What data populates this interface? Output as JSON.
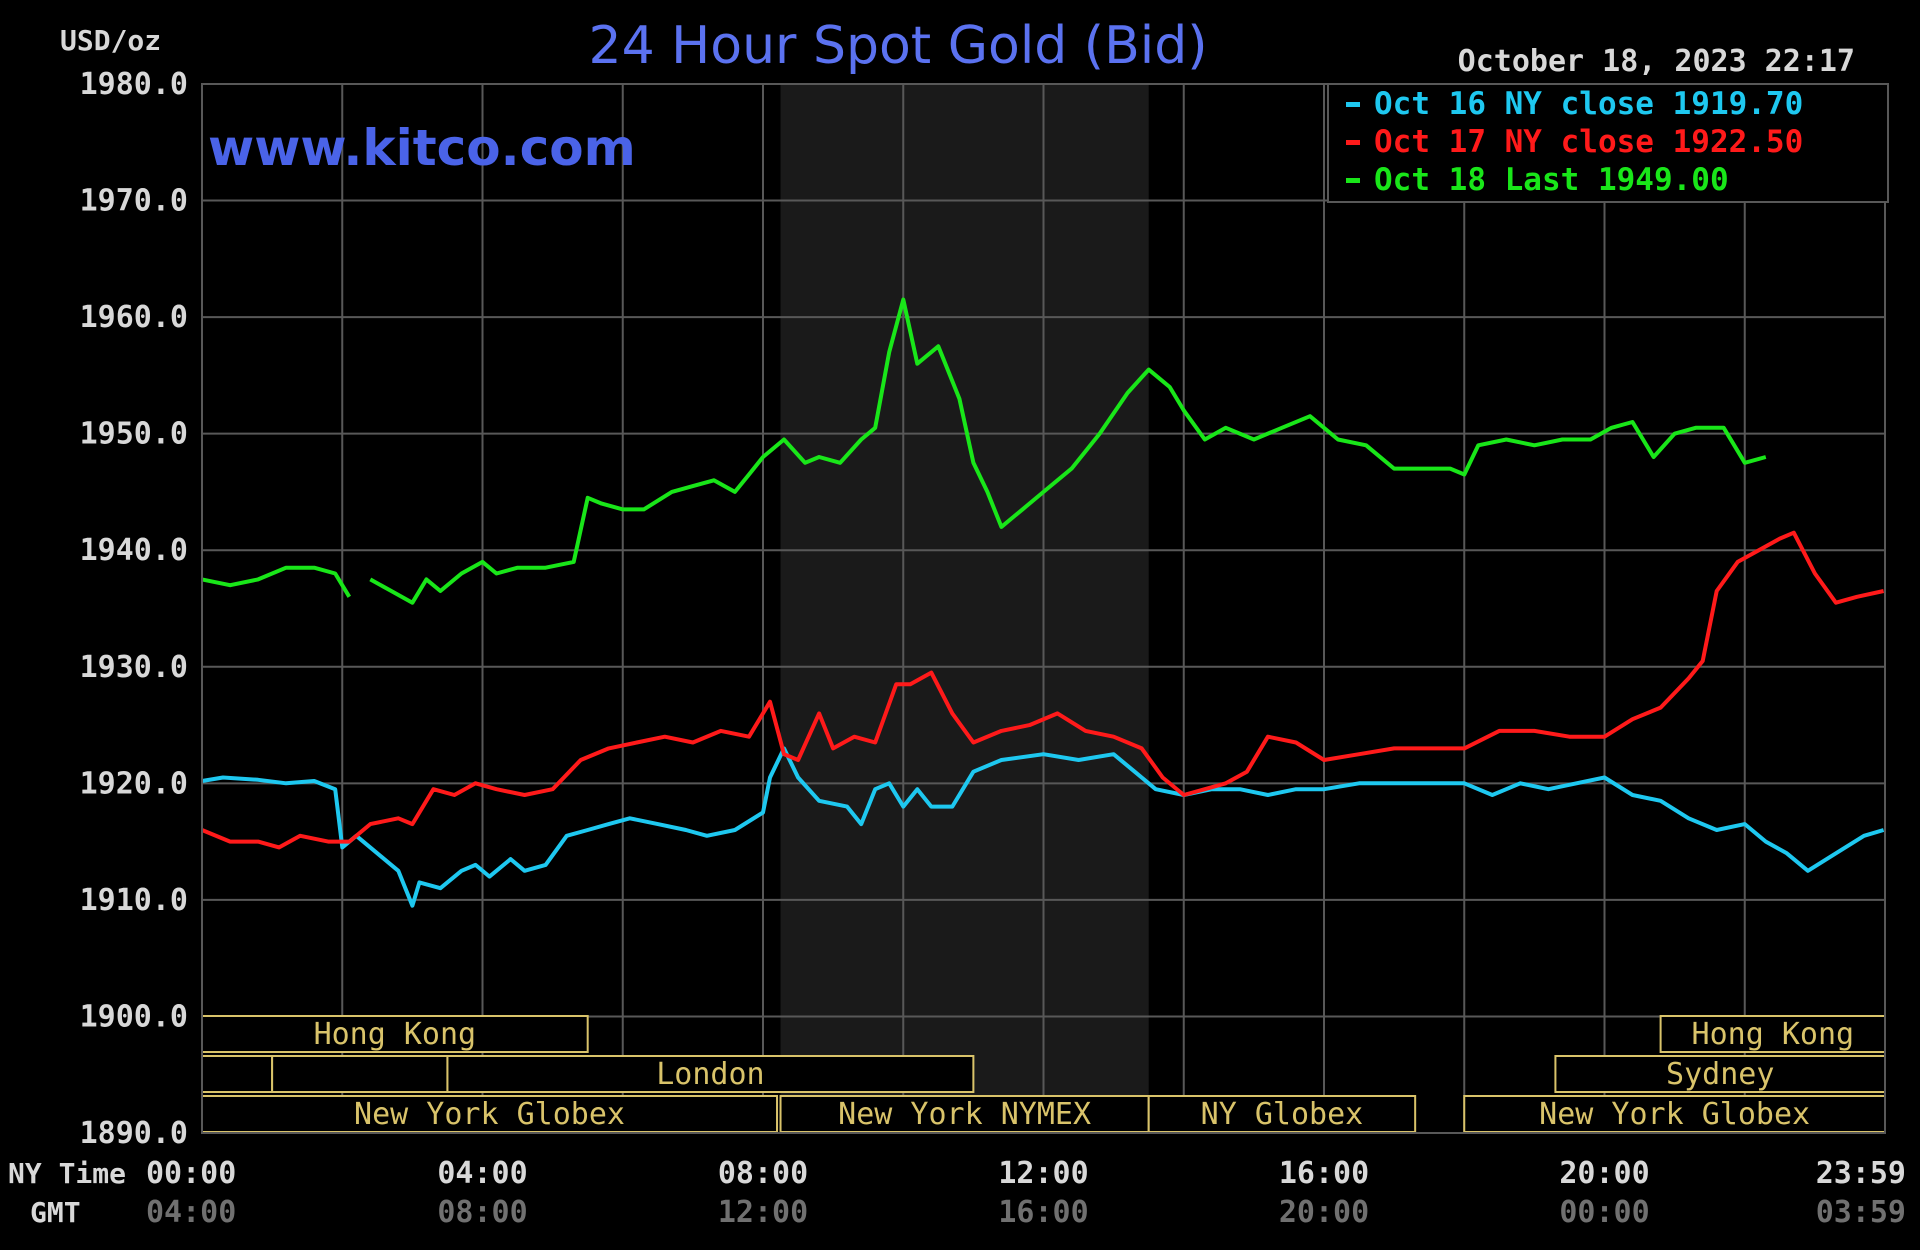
{
  "chart_data": {
    "type": "line",
    "title": "24 Hour Spot Gold (Bid)",
    "watermark": "www.kitco.com",
    "timestamp": "October 18, 2023 22:17",
    "ylabel": "USD/oz",
    "ylim": [
      1890,
      1980
    ],
    "y_ticks": [
      "1980.0",
      "1970.0",
      "1960.0",
      "1950.0",
      "1940.0",
      "1930.0",
      "1920.0",
      "1910.0",
      "1900.0",
      "1890.0"
    ],
    "x_row_labels": {
      "ny": "NY Time",
      "gmt": "GMT"
    },
    "x_ticks_ny": [
      "00:00",
      "04:00",
      "08:00",
      "12:00",
      "16:00",
      "20:00",
      "23:59"
    ],
    "x_ticks_gmt": [
      "04:00",
      "08:00",
      "12:00",
      "16:00",
      "20:00",
      "00:00",
      "03:59"
    ],
    "x_tick_hours": [
      0,
      4,
      8,
      12,
      16,
      20,
      23.983
    ],
    "grid": true,
    "shaded_period_hours": [
      8.25,
      13.5
    ],
    "legend_position": "top-right",
    "colors": {
      "background": "#000000",
      "grid": "#585858",
      "title": "#5b72f0",
      "axis_text": "#d8d8d8",
      "gmt_text": "#707070",
      "session": "#d9c36a",
      "shade": "#1a1a1a"
    },
    "sessions": [
      {
        "label": "Hong Kong",
        "row": 0,
        "start": 0,
        "end": 5.5
      },
      {
        "label": "",
        "row": 1,
        "start": 0,
        "end": 1
      },
      {
        "label": "",
        "row": 1,
        "start": 1,
        "end": 3.5
      },
      {
        "label": "London",
        "row": 1,
        "start": 3.5,
        "end": 11
      },
      {
        "label": "New York Globex",
        "row": 2,
        "start": 0,
        "end": 8.2
      },
      {
        "label": "New York NYMEX",
        "row": 2,
        "start": 8.25,
        "end": 13.5
      },
      {
        "label": "NY Globex",
        "row": 2,
        "start": 13.5,
        "end": 17.3
      },
      {
        "label": "Hong Kong",
        "row": 0,
        "start": 20.8,
        "end": 24
      },
      {
        "label": "Sydney",
        "row": 1,
        "start": 19.3,
        "end": 24
      },
      {
        "label": "New York Globex",
        "row": 2,
        "start": 18,
        "end": 24
      }
    ],
    "series": [
      {
        "name": "Oct 16 NY close 1919.70",
        "color": "#1ec8f0",
        "x": [
          0,
          0.3,
          0.8,
          1.2,
          1.6,
          1.9,
          2.0,
          2.2,
          2.5,
          2.8,
          3.0,
          3.1,
          3.4,
          3.7,
          3.9,
          4.1,
          4.4,
          4.6,
          4.9,
          5.2,
          5.5,
          5.8,
          6.1,
          6.5,
          6.9,
          7.2,
          7.6,
          8.0,
          8.1,
          8.3,
          8.5,
          8.8,
          9.2,
          9.4,
          9.6,
          9.8,
          10.0,
          10.2,
          10.4,
          10.7,
          11.0,
          11.4,
          12.0,
          12.5,
          13.0,
          13.3,
          13.6,
          14.0,
          14.4,
          14.8,
          15.2,
          15.6,
          16.0,
          16.5,
          17.0,
          17.5,
          18.0,
          18.4,
          18.8,
          19.2,
          19.6,
          20.0,
          20.4,
          20.8,
          21.2,
          21.6,
          22.0,
          22.3,
          22.6,
          22.9,
          23.3,
          23.7,
          23.98
        ],
        "values": [
          1920.2,
          1920.5,
          1920.3,
          1920.0,
          1920.2,
          1919.5,
          1914.5,
          1915.5,
          1914.0,
          1912.5,
          1909.5,
          1911.5,
          1911.0,
          1912.5,
          1913.0,
          1912.0,
          1913.5,
          1912.5,
          1913.0,
          1915.5,
          1916.0,
          1916.5,
          1917.0,
          1916.5,
          1916.0,
          1915.5,
          1916.0,
          1917.5,
          1920.5,
          1923.0,
          1920.5,
          1918.5,
          1918.0,
          1916.5,
          1919.5,
          1920.0,
          1918.0,
          1919.5,
          1918.0,
          1918.0,
          1921.0,
          1922.0,
          1922.5,
          1922.0,
          1922.5,
          1921.0,
          1919.5,
          1919.0,
          1919.5,
          1919.5,
          1919.0,
          1919.5,
          1919.5,
          1920.0,
          1920.0,
          1920.0,
          1920.0,
          1919.0,
          1920.0,
          1919.5,
          1920.0,
          1920.5,
          1919.0,
          1918.5,
          1917.0,
          1916.0,
          1916.5,
          1915.0,
          1914.0,
          1912.5,
          1914.0,
          1915.5,
          1916.0
        ]
      },
      {
        "name": "Oct 17 NY close 1922.50",
        "color": "#ff1a1a",
        "x": [
          0,
          0.4,
          0.8,
          1.1,
          1.4,
          1.8,
          2.1,
          2.4,
          2.8,
          3.0,
          3.3,
          3.6,
          3.9,
          4.2,
          4.6,
          5.0,
          5.4,
          5.8,
          6.2,
          6.6,
          7.0,
          7.4,
          7.8,
          8.1,
          8.3,
          8.5,
          8.8,
          9.0,
          9.3,
          9.6,
          9.9,
          10.1,
          10.4,
          10.7,
          11.0,
          11.4,
          11.8,
          12.2,
          12.6,
          13.0,
          13.4,
          13.7,
          14.0,
          14.3,
          14.6,
          14.9,
          15.2,
          15.6,
          16.0,
          16.5,
          17.0,
          17.5,
          18.0,
          18.5,
          19.0,
          19.5,
          20.0,
          20.4,
          20.8,
          21.2,
          21.4,
          21.6,
          21.9,
          22.2,
          22.5,
          22.7,
          23.0,
          23.3,
          23.6,
          23.98
        ],
        "values": [
          1916.0,
          1915.0,
          1915.0,
          1914.5,
          1915.5,
          1915.0,
          1915.0,
          1916.5,
          1917.0,
          1916.5,
          1919.5,
          1919.0,
          1920.0,
          1919.5,
          1919.0,
          1919.5,
          1922.0,
          1923.0,
          1923.5,
          1924.0,
          1923.5,
          1924.5,
          1924.0,
          1927.0,
          1922.5,
          1922.0,
          1926.0,
          1923.0,
          1924.0,
          1923.5,
          1928.5,
          1928.5,
          1929.5,
          1926.0,
          1923.5,
          1924.5,
          1925.0,
          1926.0,
          1924.5,
          1924.0,
          1923.0,
          1920.5,
          1919.0,
          1919.5,
          1920.0,
          1921.0,
          1924.0,
          1923.5,
          1922.0,
          1922.5,
          1923.0,
          1923.0,
          1923.0,
          1924.5,
          1924.5,
          1924.0,
          1924.0,
          1925.5,
          1926.5,
          1929.0,
          1930.5,
          1936.5,
          1939.0,
          1940.0,
          1941.0,
          1941.5,
          1938.0,
          1935.5,
          1936.0,
          1936.5
        ]
      },
      {
        "name": "Oct 18 Last 1949.00",
        "color": "#19e619",
        "x": [
          0,
          0.4,
          0.8,
          1.2,
          1.6,
          1.9,
          2.1,
          2.2,
          2.4,
          2.7,
          3.0,
          3.2,
          3.4,
          3.7,
          4.0,
          4.2,
          4.5,
          4.9,
          5.3,
          5.5,
          5.7,
          6.0,
          6.3,
          6.7,
          7.0,
          7.3,
          7.6,
          7.8,
          8.0,
          8.3,
          8.6,
          8.8,
          9.1,
          9.4,
          9.6,
          9.8,
          10.0,
          10.2,
          10.5,
          10.8,
          11.0,
          11.2,
          11.4,
          11.7,
          12.0,
          12.4,
          12.8,
          13.2,
          13.5,
          13.8,
          14.0,
          14.3,
          14.6,
          15.0,
          15.4,
          15.8,
          16.2,
          16.6,
          17.0,
          17.4,
          17.8,
          18.0,
          18.2,
          18.6,
          19.0,
          19.4,
          19.8,
          20.1,
          20.4,
          20.7,
          21.0,
          21.3,
          21.7,
          22.0,
          22.3
        ],
        "values": [
          1937.5,
          1937.0,
          1937.5,
          1938.5,
          1938.5,
          1938.0,
          1936.0,
          null,
          1937.5,
          1936.5,
          1935.5,
          1937.5,
          1936.5,
          1938.0,
          1939.0,
          1938.0,
          1938.5,
          1938.5,
          1939.0,
          1944.5,
          1944.0,
          1943.5,
          1943.5,
          1945.0,
          1945.5,
          1946.0,
          1945.0,
          1946.5,
          1948.0,
          1949.5,
          1947.5,
          1948.0,
          1947.5,
          1949.5,
          1950.5,
          1957.0,
          1961.5,
          1956.0,
          1957.5,
          1953.0,
          1947.5,
          1945.0,
          1942.0,
          1943.5,
          1945.0,
          1947.0,
          1950.0,
          1953.5,
          1955.5,
          1954.0,
          1952.0,
          1949.5,
          1950.5,
          1949.5,
          1950.5,
          1951.5,
          1949.5,
          1949.0,
          1947.0,
          1947.0,
          1947.0,
          1946.5,
          1949.0,
          1949.5,
          1949.0,
          1949.5,
          1949.5,
          1950.5,
          1951.0,
          1948.0,
          1950.0,
          1950.5,
          1950.5,
          1947.5,
          1948.0
        ]
      }
    ]
  }
}
